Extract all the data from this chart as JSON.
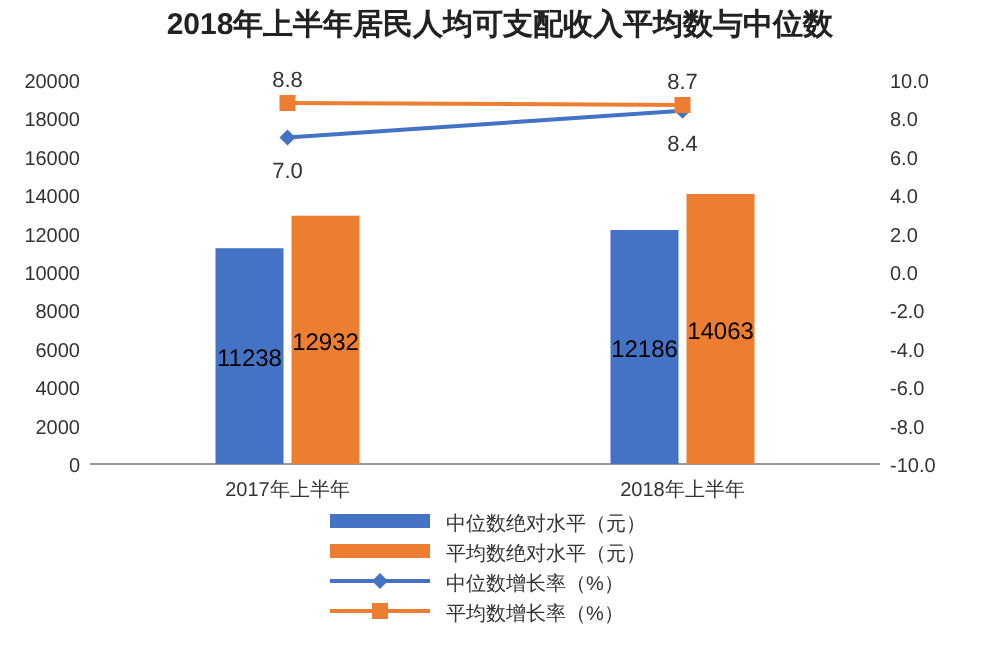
{
  "chart_data": {
    "type": "bar",
    "title": "2018年上半年居民人均可支配收入平均数与中位数",
    "categories": [
      "2017年上半年",
      "2018年上半年"
    ],
    "series": [
      {
        "name": "中位数绝对水平（元）",
        "color": "#4472c4",
        "values": [
          11238,
          12186
        ],
        "value_labels": [
          "11238",
          "12186"
        ]
      },
      {
        "name": "平均数绝对水平（元）",
        "color": "#ed7d31",
        "values": [
          12932,
          14063
        ],
        "value_labels": [
          "12932",
          "14063"
        ]
      },
      {
        "name": "中位数增长率（%）",
        "type": "line",
        "axis": "y2",
        "color": "#4472c4",
        "marker": "diamond",
        "values": [
          7.0,
          8.4
        ],
        "value_labels": [
          "7.0",
          "8.4"
        ]
      },
      {
        "name": "平均数增长率（%）",
        "type": "line",
        "axis": "y2",
        "color": "#ed7d31",
        "marker": "square",
        "values": [
          8.8,
          8.7
        ],
        "value_labels": [
          "8.8",
          "8.7"
        ]
      }
    ],
    "ylim": [
      0,
      20000
    ],
    "yticks": [
      0,
      2000,
      4000,
      6000,
      8000,
      10000,
      12000,
      14000,
      16000,
      18000,
      20000
    ],
    "y2lim": [
      -10,
      10
    ],
    "y2ticks": [
      {
        "value": -10,
        "label": "-10.0"
      },
      {
        "value": -8,
        "label": "-8.0"
      },
      {
        "value": -6,
        "label": "-6.0"
      },
      {
        "value": -4,
        "label": "-4.0"
      },
      {
        "value": -2,
        "label": "-2.0"
      },
      {
        "value": 0,
        "label": "0.0"
      },
      {
        "value": 2,
        "label": "2.0"
      },
      {
        "value": 4,
        "label": "4.0"
      },
      {
        "value": 6,
        "label": "6.0"
      },
      {
        "value": 8,
        "label": "8.0"
      },
      {
        "value": 10,
        "label": "10.0"
      }
    ],
    "legend": "bottom",
    "grid": false
  }
}
